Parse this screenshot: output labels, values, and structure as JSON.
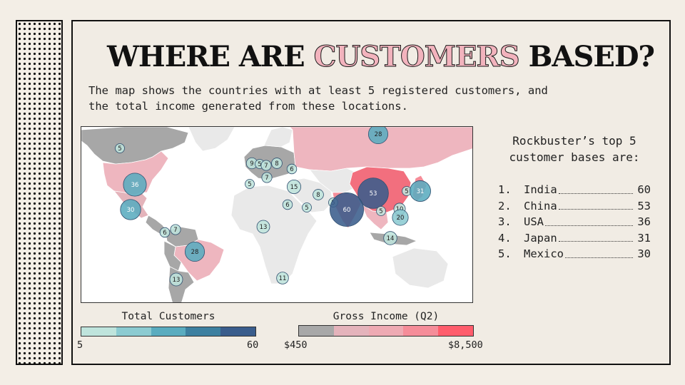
{
  "slide": {
    "title_part1": "WHERE ARE ",
    "title_highlight": "CUSTOMERS",
    "title_part2": " BASED?",
    "subtitle": "The map shows the countries with at least 5 registered customers, and\nthe total income generated from these locations."
  },
  "map": {
    "bubbles": [
      {
        "value": "5"
      },
      {
        "value": "28"
      },
      {
        "value": "36"
      },
      {
        "value": "30"
      },
      {
        "value": "9"
      },
      {
        "value": "5"
      },
      {
        "value": "7"
      },
      {
        "value": "8"
      },
      {
        "value": "6"
      },
      {
        "value": "7"
      },
      {
        "value": "5"
      },
      {
        "value": "15"
      },
      {
        "value": "8"
      },
      {
        "value": "6"
      },
      {
        "value": "5"
      },
      {
        "value": "5"
      },
      {
        "value": "53"
      },
      {
        "value": "5"
      },
      {
        "value": "31"
      },
      {
        "value": "60"
      },
      {
        "value": "5"
      },
      {
        "value": "10"
      },
      {
        "value": "20"
      },
      {
        "value": "14"
      },
      {
        "value": "13"
      },
      {
        "value": "6"
      },
      {
        "value": "7"
      },
      {
        "value": "28"
      },
      {
        "value": "13"
      },
      {
        "value": "11"
      }
    ]
  },
  "sidebar": {
    "title": "Rockbuster’s top 5\ncustomer bases are:",
    "items": [
      {
        "rank": "1.",
        "country": "India",
        "customers": "60"
      },
      {
        "rank": "2.",
        "country": "China",
        "customers": "53"
      },
      {
        "rank": "3.",
        "country": "USA",
        "customers": "36"
      },
      {
        "rank": "4.",
        "country": "Japan",
        "customers": "31"
      },
      {
        "rank": "5.",
        "country": "Mexico",
        "customers": "30"
      }
    ]
  },
  "legend": {
    "customers": {
      "title": "Total Customers",
      "min": "5",
      "max": "60",
      "colors": [
        "#bfe4dc",
        "#8ccbd1",
        "#5aacbf",
        "#3d80a0",
        "#3a5d8c"
      ]
    },
    "income": {
      "title": "Gross Income (Q2)",
      "min": "$450",
      "max": "$8,500",
      "colors": [
        "#a8a8a8",
        "#e4b3bb",
        "#eeaab3",
        "#f58d99",
        "#ff5d6c"
      ]
    }
  }
}
